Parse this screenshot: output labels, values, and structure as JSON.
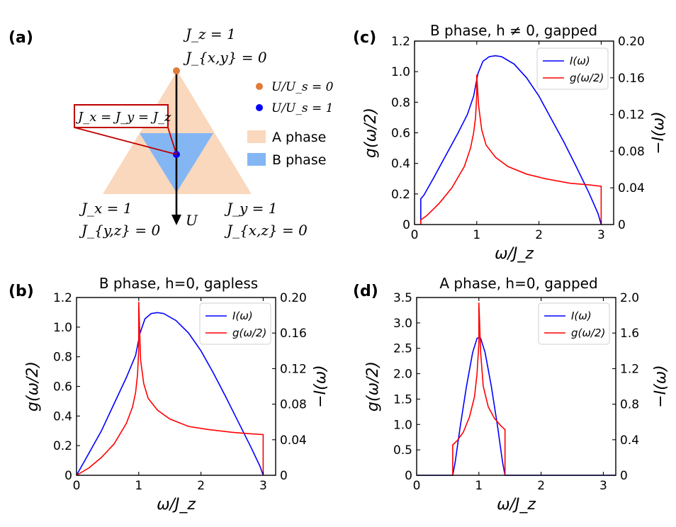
{
  "colors": {
    "blue": "#0000ff",
    "red": "#ff0000",
    "orange_point": "#e07b39",
    "blue_point": "#0000ff",
    "a_phase_fill": "#fad8bd",
    "b_phase_fill": "#84b6f4",
    "box_red": "#c00000"
  },
  "panel_a": {
    "label": "(a)",
    "top_vertex": {
      "line1": "J_z = 1",
      "line2": "J_{x,y} = 0"
    },
    "left_vertex": {
      "line1": "J_x = 1",
      "line2": "J_{y,z} = 0"
    },
    "right_vertex": {
      "line1": "J_y = 1",
      "line2": "J_{x,z} = 0"
    },
    "iso_label": "J_x = J_y = J_z",
    "arrow_label": "U",
    "legend": {
      "u0": "U/U_s = 0",
      "u1": "U/U_s = 1",
      "a_phase": "A phase",
      "b_phase": "B phase"
    }
  },
  "legend_labels": {
    "I": "I(ω)",
    "g": "g(ω/2)"
  },
  "chart_data": [
    {
      "id": "c",
      "type": "line",
      "panel_label": "(c)",
      "title": "B phase, h ≠ 0, gapped",
      "xlabel": "ω/J_z",
      "ylabel_left": "g(ω/2)",
      "ylabel_right": "−I(ω)",
      "xlim": [
        0,
        3.2
      ],
      "ylim_left": [
        0,
        1.2
      ],
      "ylim_right": [
        0,
        0.2
      ],
      "xticks": [
        "0",
        "1",
        "2",
        "3"
      ],
      "yticks_left": [
        "0",
        "0.2",
        "0.4",
        "0.6",
        "0.8",
        "1.0",
        "1.2"
      ],
      "yticks_right": [
        "0",
        "0.04",
        "0.08",
        "0.12",
        "0.16",
        "0.20"
      ],
      "legend_position": "top-right",
      "series": [
        {
          "name": "I(ω)",
          "axis": "right",
          "color": "#0000ff",
          "x": [
            0.1,
            0.1,
            0.15,
            0.3,
            0.5,
            0.7,
            0.85,
            0.95,
            1.02,
            1.1,
            1.2,
            1.3,
            1.4,
            1.6,
            1.8,
            2.0,
            2.2,
            2.4,
            2.6,
            2.8,
            2.95,
            3.0
          ],
          "y": [
            0.0,
            0.028,
            0.032,
            0.05,
            0.075,
            0.1,
            0.12,
            0.14,
            0.165,
            0.178,
            0.183,
            0.184,
            0.183,
            0.175,
            0.16,
            0.14,
            0.115,
            0.09,
            0.063,
            0.035,
            0.012,
            0.0
          ]
        },
        {
          "name": "g(ω/2)",
          "axis": "left",
          "color": "#ff0000",
          "x": [
            0.1,
            0.1,
            0.2,
            0.4,
            0.6,
            0.8,
            0.9,
            0.95,
            0.98,
            1.0,
            1.0,
            1.03,
            1.08,
            1.15,
            1.3,
            1.5,
            1.8,
            2.1,
            2.5,
            2.8,
            3.0,
            3.0
          ],
          "y": [
            0.0,
            0.03,
            0.06,
            0.14,
            0.24,
            0.38,
            0.5,
            0.6,
            0.7,
            0.85,
            0.98,
            0.78,
            0.62,
            0.52,
            0.44,
            0.38,
            0.33,
            0.3,
            0.27,
            0.26,
            0.25,
            0.0
          ]
        }
      ]
    },
    {
      "id": "b",
      "type": "line",
      "panel_label": "(b)",
      "title": "B phase, h=0, gapless",
      "xlabel": "ω/J_z",
      "ylabel_left": "g(ω/2)",
      "ylabel_right": "−I(ω)",
      "xlim": [
        0,
        3.2
      ],
      "ylim_left": [
        0,
        1.2
      ],
      "ylim_right": [
        0,
        0.2
      ],
      "xticks": [
        "0",
        "1",
        "2",
        "3"
      ],
      "yticks_left": [
        "0",
        "0.2",
        "0.4",
        "0.6",
        "0.8",
        "1.0",
        "1.2"
      ],
      "yticks_right": [
        "0",
        "0.04",
        "0.08",
        "0.12",
        "0.16",
        "0.20"
      ],
      "legend_position": "top-right",
      "series": [
        {
          "name": "I(ω)",
          "axis": "right",
          "color": "#0000ff",
          "x": [
            0.0,
            0.2,
            0.4,
            0.6,
            0.8,
            0.95,
            1.02,
            1.1,
            1.2,
            1.3,
            1.4,
            1.6,
            1.8,
            2.0,
            2.2,
            2.4,
            2.6,
            2.8,
            2.95,
            3.0
          ],
          "y": [
            0.0,
            0.025,
            0.05,
            0.08,
            0.11,
            0.135,
            0.16,
            0.176,
            0.182,
            0.183,
            0.182,
            0.174,
            0.16,
            0.14,
            0.115,
            0.088,
            0.06,
            0.032,
            0.01,
            0.0
          ]
        },
        {
          "name": "g(ω/2)",
          "axis": "left",
          "color": "#ff0000",
          "x": [
            0.0,
            0.2,
            0.4,
            0.6,
            0.8,
            0.9,
            0.95,
            0.98,
            1.0,
            1.0,
            1.03,
            1.08,
            1.15,
            1.3,
            1.5,
            1.8,
            2.1,
            2.5,
            2.8,
            3.0,
            3.0
          ],
          "y": [
            0.0,
            0.05,
            0.12,
            0.21,
            0.35,
            0.46,
            0.56,
            0.68,
            0.85,
            1.17,
            0.78,
            0.62,
            0.52,
            0.44,
            0.38,
            0.33,
            0.31,
            0.29,
            0.28,
            0.275,
            0.0
          ]
        }
      ]
    },
    {
      "id": "d",
      "type": "line",
      "panel_label": "(d)",
      "title": "A phase, h=0, gapped",
      "xlabel": "ω/J_z",
      "ylabel_left": "g(ω/2)",
      "ylabel_right": "−I(ω)",
      "xlim": [
        0,
        3.2
      ],
      "ylim_left": [
        0,
        3.5
      ],
      "ylim_right": [
        0,
        2.0
      ],
      "xticks": [
        "0",
        "1",
        "2",
        "3"
      ],
      "yticks_left": [
        "0",
        "0.5",
        "1.0",
        "1.5",
        "2.0",
        "2.5",
        "3.0",
        "3.5"
      ],
      "yticks_right": [
        "0",
        "0.4",
        "0.8",
        "1.2",
        "1.6",
        "2.0"
      ],
      "legend_position": "top-right",
      "series": [
        {
          "name": "I(ω)",
          "axis": "right",
          "color": "#0000ff",
          "x": [
            0.0,
            0.58,
            0.62,
            0.7,
            0.8,
            0.9,
            0.97,
            1.0,
            1.03,
            1.1,
            1.2,
            1.3,
            1.38,
            1.42,
            3.2
          ],
          "y": [
            0.0,
            0.0,
            0.15,
            0.55,
            1.0,
            1.38,
            1.54,
            1.55,
            1.54,
            1.38,
            1.0,
            0.55,
            0.15,
            0.0,
            0.0
          ]
        },
        {
          "name": "g(ω/2)",
          "axis": "left",
          "color": "#ff0000",
          "x": [
            0.58,
            0.58,
            0.65,
            0.75,
            0.85,
            0.93,
            0.97,
            1.0,
            1.0,
            1.03,
            1.07,
            1.15,
            1.25,
            1.35,
            1.42,
            1.42
          ],
          "y": [
            0.0,
            0.6,
            0.68,
            0.85,
            1.15,
            1.55,
            2.0,
            2.6,
            3.4,
            2.4,
            1.75,
            1.35,
            1.12,
            0.98,
            0.9,
            0.0
          ]
        }
      ]
    }
  ]
}
